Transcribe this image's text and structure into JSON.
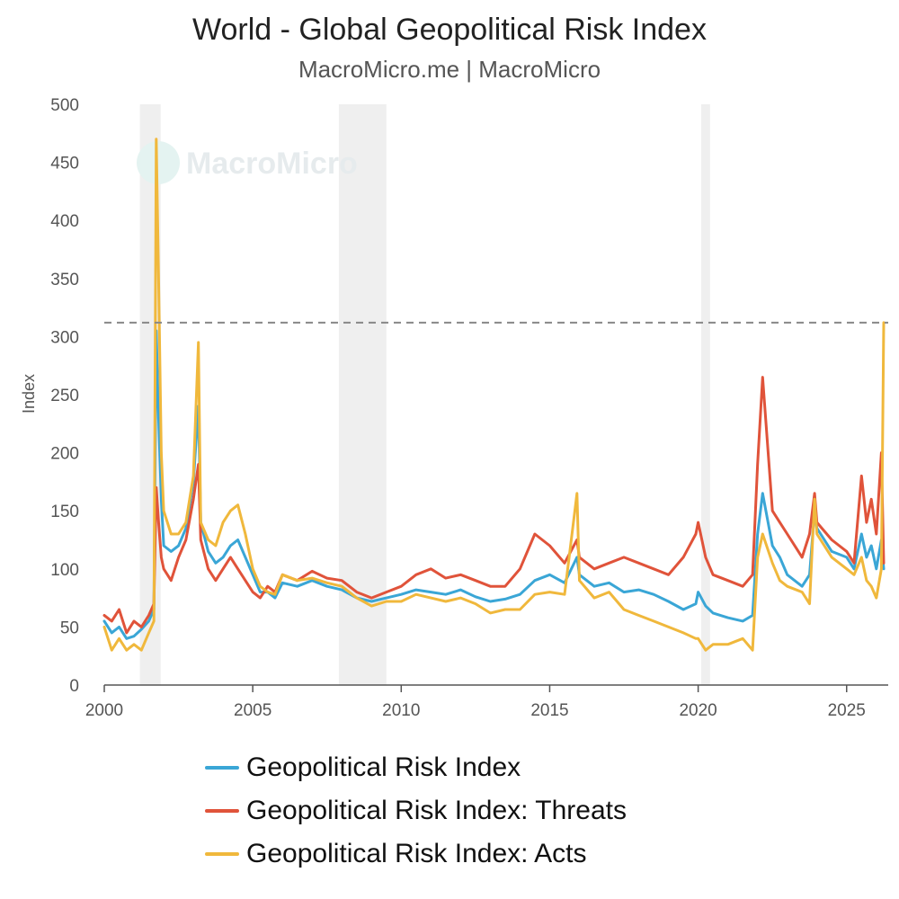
{
  "chart_data": {
    "type": "line",
    "title": "World - Global Geopolitical Risk Index",
    "subtitle": "MacroMicro.me | MacroMicro",
    "watermark": "MacroMicro",
    "ylabel": "Index",
    "xlabel": "",
    "ylim": [
      0,
      500
    ],
    "xlim": [
      2000,
      2026.4
    ],
    "yticks": [
      0,
      50,
      100,
      150,
      200,
      250,
      300,
      350,
      400,
      450,
      500
    ],
    "xticks": [
      2000,
      2005,
      2010,
      2015,
      2020,
      2025
    ],
    "reference_line": 312,
    "shaded_periods": [
      [
        2001.2,
        2001.9
      ],
      [
        2007.9,
        2009.5
      ],
      [
        2020.1,
        2020.4
      ]
    ],
    "x": [
      2000.0,
      2000.25,
      2000.5,
      2000.75,
      2001.0,
      2001.25,
      2001.5,
      2001.67,
      2001.75,
      2001.83,
      2001.92,
      2002.0,
      2002.25,
      2002.5,
      2002.75,
      2003.0,
      2003.17,
      2003.25,
      2003.5,
      2003.75,
      2004.0,
      2004.25,
      2004.5,
      2004.75,
      2005.0,
      2005.25,
      2005.5,
      2005.75,
      2006.0,
      2006.5,
      2007.0,
      2007.5,
      2008.0,
      2008.5,
      2009.0,
      2009.5,
      2010.0,
      2010.5,
      2011.0,
      2011.5,
      2012.0,
      2012.5,
      2013.0,
      2013.5,
      2014.0,
      2014.5,
      2015.0,
      2015.5,
      2015.92,
      2016.0,
      2016.5,
      2017.0,
      2017.5,
      2018.0,
      2018.5,
      2019.0,
      2019.5,
      2019.92,
      2020.0,
      2020.25,
      2020.5,
      2021.0,
      2021.5,
      2021.83,
      2022.0,
      2022.17,
      2022.5,
      2022.75,
      2023.0,
      2023.5,
      2023.75,
      2023.92,
      2024.0,
      2024.5,
      2025.0,
      2025.25,
      2025.5,
      2025.67,
      2025.83,
      2026.0,
      2026.17,
      2026.25
    ],
    "series": [
      {
        "name": "Geopolitical Risk Index",
        "color": "#3aa6d6",
        "values": [
          55,
          45,
          50,
          40,
          42,
          48,
          55,
          65,
          305,
          230,
          160,
          120,
          115,
          120,
          135,
          175,
          240,
          140,
          115,
          105,
          110,
          120,
          125,
          110,
          95,
          80,
          80,
          75,
          88,
          85,
          90,
          85,
          82,
          75,
          72,
          75,
          78,
          82,
          80,
          78,
          82,
          76,
          72,
          74,
          78,
          90,
          95,
          88,
          110,
          95,
          85,
          88,
          80,
          82,
          78,
          72,
          65,
          70,
          80,
          68,
          62,
          58,
          55,
          60,
          130,
          165,
          120,
          110,
          95,
          85,
          95,
          150,
          135,
          115,
          110,
          100,
          130,
          110,
          120,
          100,
          125,
          100
        ]
      },
      {
        "name": "Geopolitical Risk Index: Threats",
        "color": "#e0533a",
        "values": [
          60,
          55,
          65,
          45,
          55,
          50,
          60,
          70,
          170,
          140,
          110,
          100,
          90,
          110,
          125,
          160,
          190,
          125,
          100,
          90,
          100,
          110,
          100,
          90,
          80,
          75,
          85,
          80,
          95,
          90,
          98,
          92,
          90,
          80,
          75,
          80,
          85,
          95,
          100,
          92,
          95,
          90,
          85,
          85,
          100,
          130,
          120,
          105,
          125,
          110,
          100,
          105,
          110,
          105,
          100,
          95,
          110,
          130,
          140,
          110,
          95,
          90,
          85,
          95,
          190,
          265,
          150,
          140,
          130,
          110,
          130,
          165,
          140,
          125,
          115,
          105,
          180,
          140,
          160,
          130,
          200,
          105
        ]
      },
      {
        "name": "Geopolitical Risk Index: Acts",
        "color": "#f0b83c",
        "values": [
          50,
          30,
          40,
          30,
          35,
          30,
          45,
          55,
          470,
          350,
          200,
          150,
          130,
          130,
          140,
          180,
          295,
          140,
          125,
          120,
          140,
          150,
          155,
          130,
          100,
          85,
          80,
          78,
          95,
          90,
          92,
          88,
          85,
          75,
          68,
          72,
          72,
          78,
          75,
          72,
          75,
          70,
          62,
          65,
          65,
          78,
          80,
          78,
          165,
          90,
          75,
          80,
          65,
          60,
          55,
          50,
          45,
          40,
          40,
          30,
          35,
          35,
          40,
          30,
          110,
          130,
          105,
          90,
          85,
          80,
          70,
          160,
          130,
          110,
          100,
          95,
          110,
          90,
          85,
          75,
          100,
          312
        ]
      }
    ]
  }
}
